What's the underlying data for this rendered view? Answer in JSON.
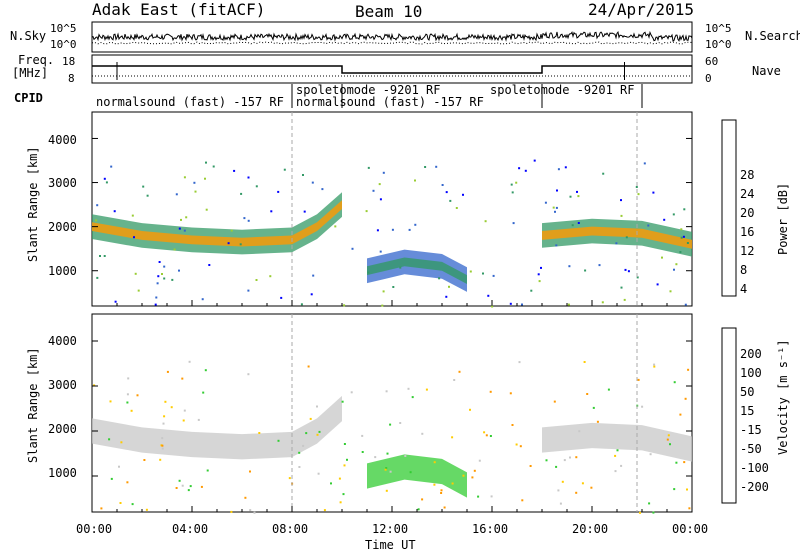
{
  "header": {
    "title": "Adak East (fitACF)",
    "beam": "Beam 10",
    "date": "24/Apr/2015"
  },
  "top_panels": {
    "nsky_label": "N.Sky",
    "nsky_ticks": [
      "10^5",
      "10^0"
    ],
    "nsearch_label": "N.Search",
    "nsearch_ticks": [
      "10^5",
      "10^0"
    ],
    "freq_label": "Freq.",
    "freq_unit": "[MHz]",
    "freq_ticks": [
      "18",
      "8"
    ],
    "nave_label": "Nave",
    "nave_ticks": [
      "60",
      "0"
    ],
    "cpid_label": "CPID",
    "cpid_segments": [
      {
        "label": "normalsound (fast) -157 RF",
        "start": 0.0,
        "end": 8.0
      },
      {
        "label": "spoletomode -9201 RF",
        "start": 8.0,
        "end": 10.0
      },
      {
        "label": "normalsound (fast) -157 RF",
        "start": 10.0,
        "end": 18.0
      },
      {
        "label": "spoletomode -9201 RF",
        "start": 18.0,
        "end": 22.0
      }
    ]
  },
  "chart_data": [
    {
      "type": "heatmap",
      "name": "power",
      "ylabel": "Slant Range [km]",
      "yticks": [
        "4000",
        "3000",
        "2000",
        "1000"
      ],
      "ylim": [
        200,
        4600
      ],
      "xlim": [
        0,
        24
      ],
      "colorbar_label": "Power [dB]",
      "colorbar_ticks": [
        "28",
        "24",
        "20",
        "16",
        "12",
        "8",
        "4"
      ],
      "colorbar_colors": [
        "#ff0000",
        "#ff6600",
        "#ff9900",
        "#ffcc00",
        "#99cc33",
        "#339966",
        "#3366cc",
        "#0000ff"
      ],
      "bands": [
        {
          "x": [
            0,
            2,
            4,
            6,
            8,
            9,
            10
          ],
          "y": [
            2000,
            1800,
            1700,
            1650,
            1700,
            2000,
            2500
          ]
        },
        {
          "x": [
            11,
            12.5,
            14,
            15
          ],
          "y": [
            1000,
            1200,
            1100,
            800
          ]
        },
        {
          "x": [
            18,
            20,
            22,
            24
          ],
          "y": [
            1800,
            1900,
            1850,
            1600
          ]
        }
      ]
    },
    {
      "type": "heatmap",
      "name": "velocity",
      "ylabel": "Slant Range [km]",
      "yticks": [
        "4000",
        "3000",
        "2000",
        "1000"
      ],
      "ylim": [
        200,
        4600
      ],
      "xlim": [
        0,
        24
      ],
      "xlabel": "Time UT",
      "xticks": [
        "00:00",
        "04:00",
        "08:00",
        "12:00",
        "16:00",
        "20:00",
        "00:00"
      ],
      "colorbar_label": "Velocity [m s⁻¹]",
      "colorbar_ticks": [
        "200",
        "100",
        "50",
        "15",
        "-15",
        "-50",
        "-100",
        "-200"
      ],
      "colorbar_colors": [
        "#3333aa",
        "#339966",
        "#33cc33",
        "#99ff66",
        "#c8c8c8",
        "#ffcc00",
        "#ff9900",
        "#ff6600",
        "#ff0000"
      ]
    }
  ]
}
